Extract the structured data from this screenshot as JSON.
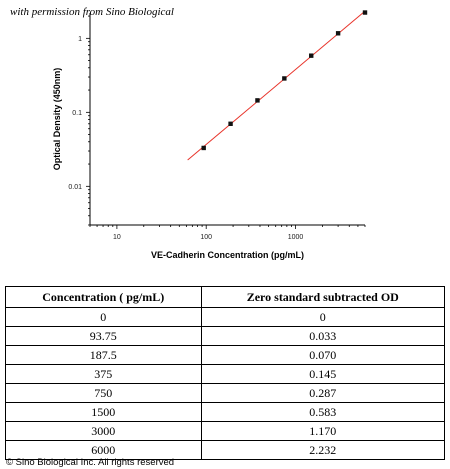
{
  "permission_note": "with permission from Sino Biological",
  "copyright": "© Sino Biological Inc. All rights reserved",
  "chart_data": {
    "type": "scatter",
    "xlabel": "VE-Cadherin Concentration (pg/mL)",
    "ylabel": "Optical Density (450nm)",
    "x_scale": "log",
    "y_scale": "log",
    "xlim": [
      5,
      6000
    ],
    "ylim": [
      0.003,
      2.2
    ],
    "x_ticks": [
      {
        "value": 10,
        "label": "10"
      },
      {
        "value": 100,
        "label": "100"
      },
      {
        "value": 1000,
        "label": "1000"
      }
    ],
    "y_ticks": [
      {
        "value": 1,
        "label": "1"
      },
      {
        "value": 0.1,
        "label": "0.1"
      },
      {
        "value": 0.01,
        "label": "0.01"
      }
    ],
    "grid": false,
    "points": [
      {
        "x": 93.75,
        "y": 0.033
      },
      {
        "x": 187.5,
        "y": 0.07
      },
      {
        "x": 375,
        "y": 0.145
      },
      {
        "x": 750,
        "y": 0.287
      },
      {
        "x": 1500,
        "y": 0.583
      },
      {
        "x": 3000,
        "y": 1.17
      },
      {
        "x": 6000,
        "y": 2.232
      }
    ],
    "fit_line": {
      "color": "#e8332a",
      "x_start": 62,
      "x_end": 6000
    },
    "point_color": "#111111"
  },
  "table": {
    "headers": [
      "Concentration ( pg/mL)",
      "Zero standard subtracted OD"
    ],
    "rows": [
      [
        "0",
        "0"
      ],
      [
        "93.75",
        "0.033"
      ],
      [
        "187.5",
        "0.070"
      ],
      [
        "375",
        "0.145"
      ],
      [
        "750",
        "0.287"
      ],
      [
        "1500",
        "0.583"
      ],
      [
        "3000",
        "1.170"
      ],
      [
        "6000",
        "2.232"
      ]
    ]
  }
}
